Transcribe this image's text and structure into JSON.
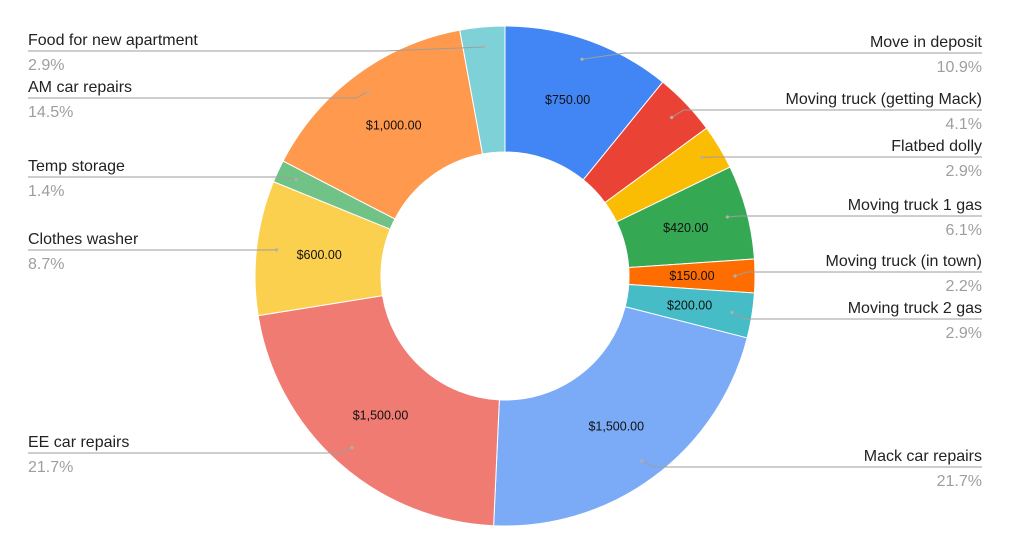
{
  "chart_data": {
    "type": "pie",
    "donut": true,
    "title": "",
    "legend": "none",
    "slices": [
      {
        "label": "Move in deposit",
        "value": 750,
        "value_label": "$750.00",
        "percent": "10.9%",
        "color": "#4285f4",
        "side": "right"
      },
      {
        "label": "Moving truck (getting Mack)",
        "value": 280,
        "value_label": "",
        "percent": "4.1%",
        "color": "#ea4335",
        "side": "right"
      },
      {
        "label": "Flatbed dolly",
        "value": 200,
        "value_label": "",
        "percent": "2.9%",
        "color": "#fbbc04",
        "side": "right"
      },
      {
        "label": "Moving truck 1 gas",
        "value": 420,
        "value_label": "$420.00",
        "percent": "6.1%",
        "color": "#34a853",
        "side": "right"
      },
      {
        "label": "Moving truck (in town)",
        "value": 150,
        "value_label": "$150.00",
        "percent": "2.2%",
        "color": "#ff6d01",
        "side": "right"
      },
      {
        "label": "Moving truck 2 gas",
        "value": 200,
        "value_label": "$200.00",
        "percent": "2.9%",
        "color": "#46bdc6",
        "side": "right"
      },
      {
        "label": "Mack car repairs",
        "value": 1500,
        "value_label": "$1,500.00",
        "percent": "21.7%",
        "color": "#7baaf7",
        "side": "right"
      },
      {
        "label": "EE car repairs",
        "value": 1500,
        "value_label": "$1,500.00",
        "percent": "21.7%",
        "color": "#f07b72",
        "side": "left"
      },
      {
        "label": "Clothes washer",
        "value": 600,
        "value_label": "$600.00",
        "percent": "8.7%",
        "color": "#fcd04f",
        "side": "left"
      },
      {
        "label": "Temp storage",
        "value": 100,
        "value_label": "",
        "percent": "1.4%",
        "color": "#71c287",
        "side": "left"
      },
      {
        "label": "AM car repairs",
        "value": 1000,
        "value_label": "$1,000.00",
        "percent": "14.5%",
        "color": "#ff994d",
        "side": "left"
      },
      {
        "label": "Food for new apartment",
        "value": 200,
        "value_label": "",
        "percent": "2.9%",
        "color": "#7ed1d7",
        "side": "left"
      }
    ]
  }
}
